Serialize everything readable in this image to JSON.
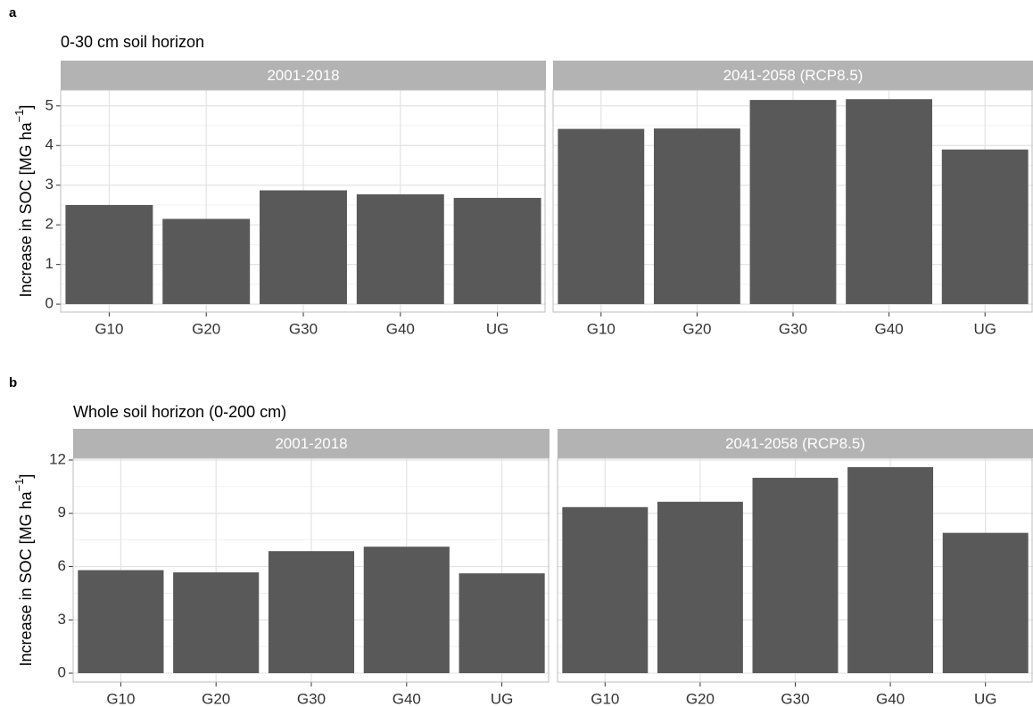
{
  "chart_data": [
    {
      "type": "bar",
      "label": "a",
      "title": "0-30 cm soil horizon",
      "y_label_parts": [
        "Increase in SOC [MG  ha",
        "−1",
        "]"
      ],
      "color": "#595959",
      "grid": true,
      "ylim": [
        -0.2,
        5.4
      ],
      "yticks": [
        0,
        1,
        2,
        3,
        4,
        5
      ],
      "facets": [
        {
          "strip": "2001-2018",
          "categories": [
            "G10",
            "G20",
            "G30",
            "G40",
            "UG"
          ],
          "values": [
            2.5,
            2.15,
            2.87,
            2.77,
            2.68
          ]
        },
        {
          "strip": "2041-2058 (RCP8.5)",
          "categories": [
            "G10",
            "G20",
            "G30",
            "G40",
            "UG"
          ],
          "values": [
            4.42,
            4.43,
            5.15,
            5.17,
            3.9
          ]
        }
      ]
    },
    {
      "type": "bar",
      "label": "b",
      "title": "Whole soil horizon (0-200 cm)",
      "y_label_parts": [
        "Increase in SOC [MG  ha",
        "−1",
        "]"
      ],
      "color": "#595959",
      "grid": true,
      "ylim": [
        -0.5,
        12.1
      ],
      "yticks": [
        0,
        3,
        6,
        9,
        12
      ],
      "facets": [
        {
          "strip": "2001-2018",
          "categories": [
            "G10",
            "G20",
            "G30",
            "G40",
            "UG"
          ],
          "values": [
            5.8,
            5.68,
            6.87,
            7.12,
            5.62
          ]
        },
        {
          "strip": "2041-2058 (RCP8.5)",
          "categories": [
            "G10",
            "G20",
            "G30",
            "G40",
            "UG"
          ],
          "values": [
            9.35,
            9.65,
            11.0,
            11.6,
            7.9
          ]
        }
      ]
    }
  ]
}
